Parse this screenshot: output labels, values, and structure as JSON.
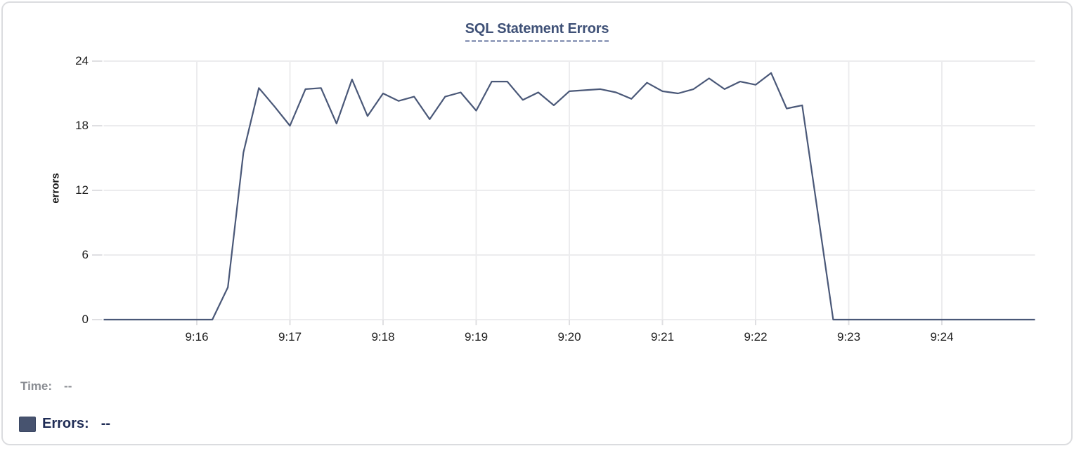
{
  "title": "SQL Statement Errors",
  "legend": {
    "time_label": "Time:",
    "time_value": "--",
    "errors_label": "Errors:",
    "errors_value": "--"
  },
  "colors": {
    "line": "#4A5878",
    "grid": "#ECECEE",
    "tick_mark": "#DFDFE2",
    "title": "#3F5177",
    "title_underline": "#9AA4C0",
    "axis_text": "#1E1E1E",
    "time_label": "#8A8D93",
    "errors_label": "#1F2C55",
    "swatch": "#47536F",
    "card_border": "#DBDCDF"
  },
  "chart_data": {
    "type": "line",
    "title": "SQL Statement Errors",
    "xlabel": "",
    "ylabel": "errors",
    "ylim": [
      0,
      24
    ],
    "y_ticks": [
      0,
      6,
      12,
      18,
      24
    ],
    "x_ticks": [
      "9:16",
      "9:17",
      "9:18",
      "9:19",
      "9:20",
      "9:21",
      "9:22",
      "9:23",
      "9:24"
    ],
    "x_range": [
      "9:15:00",
      "9:25:00"
    ],
    "grid": true,
    "legend_position": "bottom-left",
    "x": [
      "9:15:00",
      "9:15:10",
      "9:15:20",
      "9:15:30",
      "9:15:40",
      "9:15:50",
      "9:16:00",
      "9:16:10",
      "9:16:20",
      "9:16:30",
      "9:16:40",
      "9:16:50",
      "9:17:00",
      "9:17:10",
      "9:17:20",
      "9:17:30",
      "9:17:40",
      "9:17:50",
      "9:18:00",
      "9:18:10",
      "9:18:20",
      "9:18:30",
      "9:18:40",
      "9:18:50",
      "9:19:00",
      "9:19:10",
      "9:19:20",
      "9:19:30",
      "9:19:40",
      "9:19:50",
      "9:20:00",
      "9:20:10",
      "9:20:20",
      "9:20:30",
      "9:20:40",
      "9:20:50",
      "9:21:00",
      "9:21:10",
      "9:21:20",
      "9:21:30",
      "9:21:40",
      "9:21:50",
      "9:22:00",
      "9:22:10",
      "9:22:20",
      "9:22:30",
      "9:22:40",
      "9:22:50",
      "9:23:00",
      "9:23:10",
      "9:23:20",
      "9:23:30",
      "9:23:40",
      "9:23:50",
      "9:24:00",
      "9:24:10",
      "9:24:20",
      "9:24:30",
      "9:24:40",
      "9:24:50",
      "9:25:00"
    ],
    "values": [
      0,
      0,
      0,
      0,
      0,
      0,
      0,
      0,
      3,
      15.5,
      21.5,
      19.8,
      18,
      21.4,
      21.5,
      18.2,
      22.3,
      18.9,
      21,
      20.3,
      20.7,
      18.6,
      20.7,
      21.1,
      19.4,
      22.1,
      22.1,
      20.4,
      21.1,
      19.9,
      21.2,
      21.3,
      21.4,
      21.1,
      20.5,
      22,
      21.2,
      21,
      21.4,
      22.4,
      21.4,
      22.1,
      21.8,
      22.9,
      19.6,
      19.9,
      10,
      0,
      0,
      0,
      0,
      0,
      0,
      0,
      0,
      0,
      0,
      0,
      0,
      0,
      0
    ]
  }
}
